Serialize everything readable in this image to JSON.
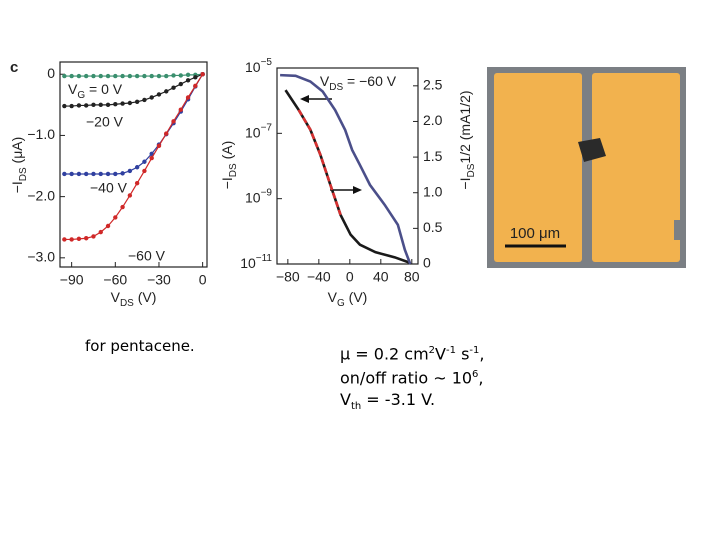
{
  "panel_label": "c",
  "chart_data": [
    {
      "type": "line",
      "xlabel": "VDS (V)",
      "ylabel": "−IDS (μA)",
      "markers": true,
      "xlim": [
        -98,
        3
      ],
      "ylim": [
        -3.15,
        0.2
      ],
      "xticks": [
        {
          "value": -90,
          "label": "−90"
        },
        {
          "value": -60,
          "label": "−60"
        },
        {
          "value": -30,
          "label": "−30"
        },
        0
      ],
      "yticks": [
        0,
        {
          "value": -1,
          "label": "−1.0"
        },
        {
          "value": -2,
          "label": "−2.0"
        },
        {
          "value": -3,
          "label": "−3.0"
        }
      ],
      "x": [
        -95,
        -90,
        -85,
        -80,
        -75,
        -70,
        -65,
        -60,
        -55,
        -50,
        -45,
        -40,
        -35,
        -30,
        -25,
        -20,
        -15,
        -10,
        -5,
        0
      ],
      "series": [
        {
          "name": "VG = 0 V",
          "color": "#3a8f6e",
          "values": [
            -0.03,
            -0.03,
            -0.03,
            -0.03,
            -0.03,
            -0.03,
            -0.03,
            -0.03,
            -0.03,
            -0.03,
            -0.03,
            -0.03,
            -0.03,
            -0.03,
            -0.03,
            -0.02,
            -0.02,
            -0.01,
            -0.01,
            0
          ]
        },
        {
          "name": "−20 V",
          "color": "#222222",
          "values": [
            -0.52,
            -0.52,
            -0.51,
            -0.51,
            -0.5,
            -0.5,
            -0.5,
            -0.49,
            -0.48,
            -0.47,
            -0.45,
            -0.42,
            -0.38,
            -0.33,
            -0.28,
            -0.22,
            -0.16,
            -0.1,
            -0.05,
            0
          ]
        },
        {
          "name": "−40 V",
          "color": "#3040a0",
          "values": [
            -1.63,
            -1.63,
            -1.63,
            -1.63,
            -1.63,
            -1.63,
            -1.63,
            -1.63,
            -1.62,
            -1.58,
            -1.52,
            -1.43,
            -1.3,
            -1.15,
            -0.98,
            -0.8,
            -0.61,
            -0.41,
            -0.2,
            0
          ]
        },
        {
          "name": "−60 V",
          "color": "#d02828",
          "values": [
            -2.7,
            -2.7,
            -2.69,
            -2.68,
            -2.65,
            -2.58,
            -2.48,
            -2.34,
            -2.17,
            -1.98,
            -1.78,
            -1.58,
            -1.37,
            -1.17,
            -0.97,
            -0.77,
            -0.58,
            -0.38,
            -0.19,
            0
          ]
        }
      ]
    },
    {
      "type": "line",
      "xlabel": "VG (V)",
      "ylabel": "−IDS (A)",
      "y2label": "−IDS1/2 (mA1/2)",
      "annotation": "VDS = −60 V",
      "log_y": true,
      "xlim": [
        -94,
        88
      ],
      "ylim": [
        1e-11,
        1e-05
      ],
      "y2lim": [
        0,
        2.75
      ],
      "xticks": [
        {
          "value": -80,
          "label": "−80"
        },
        {
          "value": -40,
          "label": "−40"
        },
        0,
        40,
        80
      ],
      "yticks": [
        {
          "value": 1e-05,
          "label": "10−5"
        },
        {
          "value": 1e-07,
          "label": "10−7"
        },
        {
          "value": 1e-09,
          "label": "10−9"
        },
        {
          "value": 1e-11,
          "label": "10−11"
        }
      ],
      "y2ticks": [
        0,
        0.5,
        {
          "value": 1,
          "label": "1.0"
        },
        1.5,
        {
          "value": 2,
          "label": "2.0"
        },
        2.5
      ],
      "series": [
        {
          "color": "#1a1a1a",
          "x": [
            -83,
            -66,
            -51,
            -38,
            -25,
            -12,
            1,
            13,
            33,
            58,
            77
          ],
          "values": [
            2.1e-06,
            5.2e-07,
            1.3e-07,
            2.2e-08,
            2.6e-09,
            3.2e-10,
            7.9e-11,
            3.9e-11,
            2.3e-11,
            1.6e-11,
            1.1e-11
          ]
        },
        {
          "color": "#d83030",
          "dash": true,
          "x": [
            -66,
            -51,
            -38,
            -25,
            -12
          ],
          "values": [
            5.2e-07,
            1.3e-07,
            2.2e-08,
            2.6e-09,
            3.2e-10
          ]
        },
        {
          "color": "#4b4f8a",
          "axis": "y2",
          "x": [
            -90,
            -70,
            -51,
            -35,
            -19,
            -6,
            3,
            13,
            26,
            45,
            62,
            71,
            78
          ],
          "values": [
            2.65,
            2.64,
            2.56,
            2.42,
            2.16,
            1.88,
            1.6,
            1.39,
            1.11,
            0.83,
            0.55,
            0.2,
            0
          ]
        }
      ]
    }
  ],
  "image": {
    "scale_label": "100 μm"
  },
  "caption": "for pentacene.",
  "notes": [
    [
      "μ = 0.2 cm",
      {
        "sup": "2"
      },
      "V",
      {
        "sup": "-1"
      },
      " s",
      {
        "sup": "-1"
      },
      ","
    ],
    [
      "on/off ratio ~ 10",
      {
        "sup": "6"
      },
      ","
    ],
    [
      "V",
      {
        "sub": "th"
      },
      " = -3.1 V."
    ]
  ]
}
